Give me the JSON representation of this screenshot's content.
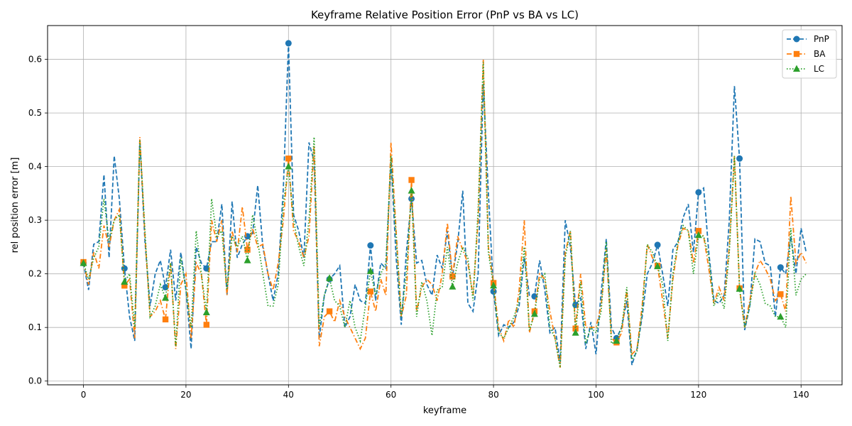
{
  "chart_data": {
    "type": "line",
    "title": "Keyframe Relative Position Error (PnP vs BA vs LC)",
    "xlabel": "keyframe",
    "ylabel": "rel position error [m]",
    "xlim": [
      -7,
      148
    ],
    "ylim": [
      -0.007,
      0.663
    ],
    "x_ticks": [
      0,
      20,
      40,
      60,
      80,
      100,
      120,
      140
    ],
    "y_ticks": [
      0.0,
      0.1,
      0.2,
      0.3,
      0.4,
      0.5,
      0.6
    ],
    "grid": true,
    "legend_position": "top-right",
    "marker_every": 8,
    "series": [
      {
        "name": "PnP",
        "color": "#1f77b4",
        "dash": "dashed",
        "marker": "circle",
        "values": [
          0.22,
          0.17,
          0.255,
          0.26,
          0.385,
          0.23,
          0.42,
          0.34,
          0.21,
          0.12,
          0.075,
          0.45,
          0.26,
          0.14,
          0.2,
          0.225,
          0.175,
          0.245,
          0.15,
          0.24,
          0.17,
          0.06,
          0.25,
          0.22,
          0.21,
          0.26,
          0.26,
          0.33,
          0.16,
          0.335,
          0.23,
          0.255,
          0.27,
          0.275,
          0.365,
          0.25,
          0.2,
          0.15,
          0.2,
          0.36,
          0.63,
          0.31,
          0.28,
          0.23,
          0.445,
          0.41,
          0.08,
          0.16,
          0.19,
          0.2,
          0.215,
          0.1,
          0.12,
          0.18,
          0.15,
          0.145,
          0.253,
          0.15,
          0.22,
          0.21,
          0.415,
          0.23,
          0.105,
          0.24,
          0.34,
          0.22,
          0.225,
          0.18,
          0.16,
          0.235,
          0.21,
          0.28,
          0.195,
          0.255,
          0.355,
          0.145,
          0.13,
          0.2,
          0.555,
          0.35,
          0.167,
          0.085,
          0.105,
          0.1,
          0.11,
          0.14,
          0.23,
          0.16,
          0.158,
          0.225,
          0.17,
          0.09,
          0.1,
          0.035,
          0.3,
          0.25,
          0.142,
          0.155,
          0.06,
          0.11,
          0.05,
          0.165,
          0.265,
          0.1,
          0.08,
          0.1,
          0.15,
          0.03,
          0.06,
          0.12,
          0.2,
          0.22,
          0.254,
          0.2,
          0.14,
          0.245,
          0.26,
          0.305,
          0.33,
          0.24,
          0.352,
          0.36,
          0.24,
          0.15,
          0.145,
          0.16,
          0.3,
          0.55,
          0.415,
          0.095,
          0.14,
          0.265,
          0.26,
          0.22,
          0.215,
          0.12,
          0.212,
          0.2,
          0.27,
          0.2,
          0.285,
          0.24
        ]
      },
      {
        "name": "BA",
        "color": "#ff7f0e",
        "dash": "dashdot",
        "marker": "square",
        "values": [
          0.222,
          0.18,
          0.24,
          0.21,
          0.29,
          0.25,
          0.3,
          0.32,
          0.178,
          0.19,
          0.08,
          0.455,
          0.27,
          0.12,
          0.13,
          0.15,
          0.115,
          0.22,
          0.06,
          0.18,
          0.2,
          0.08,
          0.22,
          0.2,
          0.105,
          0.3,
          0.26,
          0.3,
          0.16,
          0.28,
          0.24,
          0.325,
          0.245,
          0.285,
          0.25,
          0.255,
          0.2,
          0.17,
          0.22,
          0.3,
          0.415,
          0.28,
          0.26,
          0.23,
          0.27,
          0.44,
          0.065,
          0.12,
          0.13,
          0.11,
          0.15,
          0.12,
          0.1,
          0.08,
          0.06,
          0.08,
          0.167,
          0.13,
          0.19,
          0.16,
          0.445,
          0.28,
          0.12,
          0.16,
          0.375,
          0.13,
          0.175,
          0.19,
          0.18,
          0.15,
          0.2,
          0.295,
          0.195,
          0.27,
          0.245,
          0.22,
          0.16,
          0.3,
          0.6,
          0.25,
          0.183,
          0.1,
          0.075,
          0.115,
          0.1,
          0.17,
          0.3,
          0.09,
          0.13,
          0.2,
          0.19,
          0.13,
          0.08,
          0.025,
          0.24,
          0.28,
          0.098,
          0.2,
          0.1,
          0.1,
          0.1,
          0.14,
          0.245,
          0.08,
          0.072,
          0.09,
          0.17,
          0.05,
          0.06,
          0.14,
          0.255,
          0.23,
          0.215,
          0.15,
          0.08,
          0.19,
          0.255,
          0.285,
          0.28,
          0.22,
          0.28,
          0.27,
          0.21,
          0.145,
          0.175,
          0.15,
          0.25,
          0.42,
          0.173,
          0.1,
          0.15,
          0.2,
          0.225,
          0.21,
          0.19,
          0.15,
          0.162,
          0.13,
          0.345,
          0.22,
          0.24,
          0.22
        ]
      },
      {
        "name": "LC",
        "color": "#2ca02c",
        "dash": "dotted",
        "marker": "triangle",
        "values": [
          0.22,
          0.19,
          0.23,
          0.25,
          0.34,
          0.26,
          0.3,
          0.31,
          0.185,
          0.2,
          0.1,
          0.45,
          0.28,
          0.12,
          0.14,
          0.18,
          0.155,
          0.22,
          0.065,
          0.23,
          0.17,
          0.1,
          0.28,
          0.2,
          0.128,
          0.34,
          0.27,
          0.28,
          0.17,
          0.27,
          0.25,
          0.27,
          0.225,
          0.31,
          0.26,
          0.2,
          0.14,
          0.14,
          0.18,
          0.33,
          0.4,
          0.3,
          0.25,
          0.215,
          0.3,
          0.455,
          0.1,
          0.16,
          0.192,
          0.15,
          0.14,
          0.1,
          0.15,
          0.1,
          0.075,
          0.14,
          0.205,
          0.16,
          0.2,
          0.22,
          0.42,
          0.27,
          0.12,
          0.2,
          0.355,
          0.12,
          0.185,
          0.15,
          0.085,
          0.17,
          0.175,
          0.25,
          0.176,
          0.22,
          0.25,
          0.23,
          0.15,
          0.32,
          0.595,
          0.24,
          0.178,
          0.09,
          0.08,
          0.1,
          0.12,
          0.15,
          0.25,
          0.095,
          0.125,
          0.19,
          0.2,
          0.1,
          0.08,
          0.025,
          0.23,
          0.28,
          0.09,
          0.185,
          0.07,
          0.1,
          0.09,
          0.13,
          0.26,
          0.07,
          0.075,
          0.1,
          0.175,
          0.04,
          0.055,
          0.13,
          0.255,
          0.24,
          0.214,
          0.18,
          0.075,
          0.2,
          0.26,
          0.29,
          0.28,
          0.2,
          0.272,
          0.27,
          0.23,
          0.14,
          0.165,
          0.135,
          0.24,
          0.42,
          0.172,
          0.1,
          0.14,
          0.2,
          0.18,
          0.145,
          0.14,
          0.12,
          0.12,
          0.1,
          0.285,
          0.16,
          0.19,
          0.2
        ]
      }
    ]
  }
}
